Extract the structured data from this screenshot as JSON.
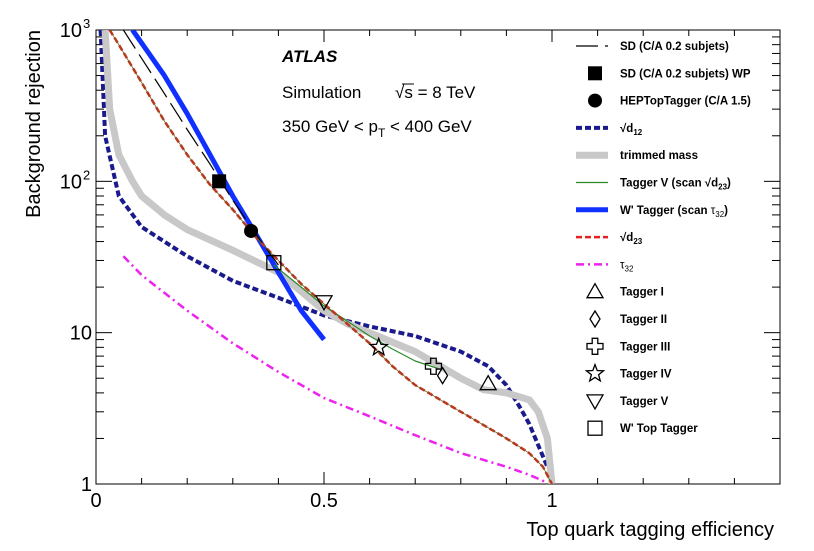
{
  "chart_data": {
    "type": "line",
    "title": "",
    "xlabel": "Top quark tagging efficiency",
    "ylabel": "Background rejection",
    "xlim": [
      0,
      1.5
    ],
    "ylim": [
      1,
      1000
    ],
    "yscale": "log",
    "x_ticks": [
      {
        "value": 0,
        "label": "0"
      },
      {
        "value": 0.5,
        "label": "0.5"
      },
      {
        "value": 1,
        "label": "1"
      }
    ],
    "y_ticks": [
      {
        "value": 1,
        "label": "1"
      },
      {
        "value": 10,
        "label": "10"
      },
      {
        "value": 100,
        "label": "10",
        "sup": "2"
      },
      {
        "value": 1000,
        "label": "10",
        "sup": "3"
      }
    ],
    "annotations": {
      "experiment": "ATLAS",
      "simulation": "Simulation",
      "energy_prefix": "√s",
      "energy_value": " = 8 TeV",
      "pt_range_prefix": "350 GeV < p",
      "pt_range_sub": "T",
      "pt_range_suffix": " < 400 GeV"
    },
    "series": [
      {
        "id": "d12",
        "name": "√d12",
        "label_main": "√d",
        "label_sub": "12",
        "color": "#1a1a8c",
        "style": "dotted",
        "x": [
          0.01,
          0.02,
          0.05,
          0.1,
          0.15,
          0.2,
          0.3,
          0.4,
          0.5,
          0.6,
          0.7,
          0.8,
          0.86,
          0.9,
          0.93,
          0.95,
          0.97,
          0.99
        ],
        "y": [
          1000,
          200,
          80,
          50,
          40,
          32,
          22,
          17,
          13,
          11,
          9.5,
          7.5,
          6,
          4.5,
          3.2,
          2.5,
          1.8,
          1.3
        ]
      },
      {
        "id": "trim",
        "name": "trimmed mass",
        "color": "#c8c8c8",
        "style": "solid",
        "x": [
          0.02,
          0.03,
          0.05,
          0.08,
          0.1,
          0.15,
          0.2,
          0.3,
          0.4,
          0.5,
          0.55,
          0.6,
          0.7,
          0.8,
          0.85,
          0.9,
          0.95,
          0.97,
          0.99,
          1.0
        ],
        "y": [
          1000,
          300,
          150,
          100,
          80,
          60,
          48,
          35,
          25,
          14,
          11.5,
          10,
          7.5,
          5,
          4.2,
          4,
          3.6,
          3,
          2,
          1
        ]
      },
      {
        "id": "taggerV",
        "name": "Tagger V (scan √d23)",
        "label_main": "Tagger V (scan ",
        "label_root": "√d",
        "label_sub": "23",
        "label_end": ")",
        "color": "#2a8a2a",
        "style": "solid",
        "x": [
          0.39,
          0.45,
          0.5,
          0.55,
          0.6,
          0.65,
          0.7,
          0.75
        ],
        "y": [
          28,
          20,
          15,
          12,
          9.5,
          7.8,
          6.5,
          5.8
        ]
      },
      {
        "id": "wprime",
        "name": "W' Tagger (scan τ32)",
        "label_main": "W' Tagger (scan ",
        "label_tau": "τ",
        "label_sub": "32",
        "label_end": ")",
        "color": "#1030ff",
        "style": "solid",
        "x": [
          0.08,
          0.15,
          0.2,
          0.25,
          0.3,
          0.35,
          0.4,
          0.45,
          0.5
        ],
        "y": [
          1000,
          500,
          280,
          150,
          80,
          45,
          25,
          14,
          9
        ]
      },
      {
        "id": "d23",
        "name": "√d23",
        "label_main": "√d",
        "label_sub": "23",
        "color": "#e82020",
        "style": "dotted",
        "x": [
          0.03,
          0.05,
          0.1,
          0.15,
          0.2,
          0.25,
          0.3,
          0.35,
          0.4,
          0.45,
          0.5,
          0.55,
          0.6,
          0.65,
          0.7,
          0.8,
          0.9,
          0.95,
          0.98,
          1.0
        ],
        "y": [
          1000,
          800,
          450,
          250,
          150,
          95,
          65,
          43,
          30,
          21,
          15.5,
          11.5,
          8.5,
          6,
          4.5,
          3,
          2,
          1.6,
          1.3,
          1
        ]
      },
      {
        "id": "tau32",
        "name": "τ32",
        "label_tau": "τ",
        "label_sub": "32",
        "color": "#ee22ee",
        "style": "dashdot",
        "x": [
          0.06,
          0.1,
          0.2,
          0.3,
          0.4,
          0.5,
          0.6,
          0.7,
          0.8,
          0.9,
          0.95,
          0.99
        ],
        "y": [
          32,
          24,
          14,
          8.5,
          5.5,
          3.7,
          2.8,
          2.1,
          1.6,
          1.3,
          1.15,
          1.02
        ]
      },
      {
        "id": "sd",
        "name": "SD (C/A 0.2 subjets)",
        "color": "#000000",
        "style": "longdash",
        "x": [
          0.06,
          0.1,
          0.15,
          0.2,
          0.25,
          0.3,
          0.35,
          0.4
        ],
        "y": [
          1000,
          650,
          380,
          220,
          130,
          75,
          45,
          28
        ]
      }
    ],
    "working_points": [
      {
        "id": "sd_wp",
        "name": "SD (C/A 0.2 subjets) WP",
        "marker": "square-filled",
        "x": 0.27,
        "y": 100
      },
      {
        "id": "hep",
        "name": "HEPTopTagger (C/A 1.5)",
        "marker": "circle-filled",
        "x": 0.34,
        "y": 47
      },
      {
        "id": "t1",
        "name": "Tagger I",
        "marker": "triangle-up",
        "x": 0.86,
        "y": 4.6
      },
      {
        "id": "t2",
        "name": "Tagger II",
        "marker": "diamond",
        "x": 0.76,
        "y": 5.2
      },
      {
        "id": "t3",
        "name": "Tagger III",
        "marker": "cross",
        "x": 0.74,
        "y": 6.0
      },
      {
        "id": "t4",
        "name": "Tagger IV",
        "marker": "star",
        "x": 0.62,
        "y": 8.0
      },
      {
        "id": "t5",
        "name": "Tagger V",
        "marker": "triangle-down",
        "x": 0.5,
        "y": 16
      },
      {
        "id": "wtop",
        "name": "W' Top Tagger",
        "marker": "square-open",
        "x": 0.39,
        "y": 29
      }
    ],
    "legend_order": [
      {
        "ref": "sd",
        "kind": "line"
      },
      {
        "ref": "sd_wp",
        "kind": "marker"
      },
      {
        "ref": "hep",
        "kind": "marker"
      },
      {
        "ref": "d12",
        "kind": "line"
      },
      {
        "ref": "trim",
        "kind": "line"
      },
      {
        "ref": "taggerV",
        "kind": "line"
      },
      {
        "ref": "wprime",
        "kind": "line"
      },
      {
        "ref": "d23",
        "kind": "line"
      },
      {
        "ref": "tau32",
        "kind": "line"
      },
      {
        "ref": "t1",
        "kind": "marker"
      },
      {
        "ref": "t2",
        "kind": "marker"
      },
      {
        "ref": "t3",
        "kind": "marker"
      },
      {
        "ref": "t4",
        "kind": "marker"
      },
      {
        "ref": "t5",
        "kind": "marker"
      },
      {
        "ref": "wtop",
        "kind": "marker"
      }
    ],
    "legend_position": "right"
  }
}
